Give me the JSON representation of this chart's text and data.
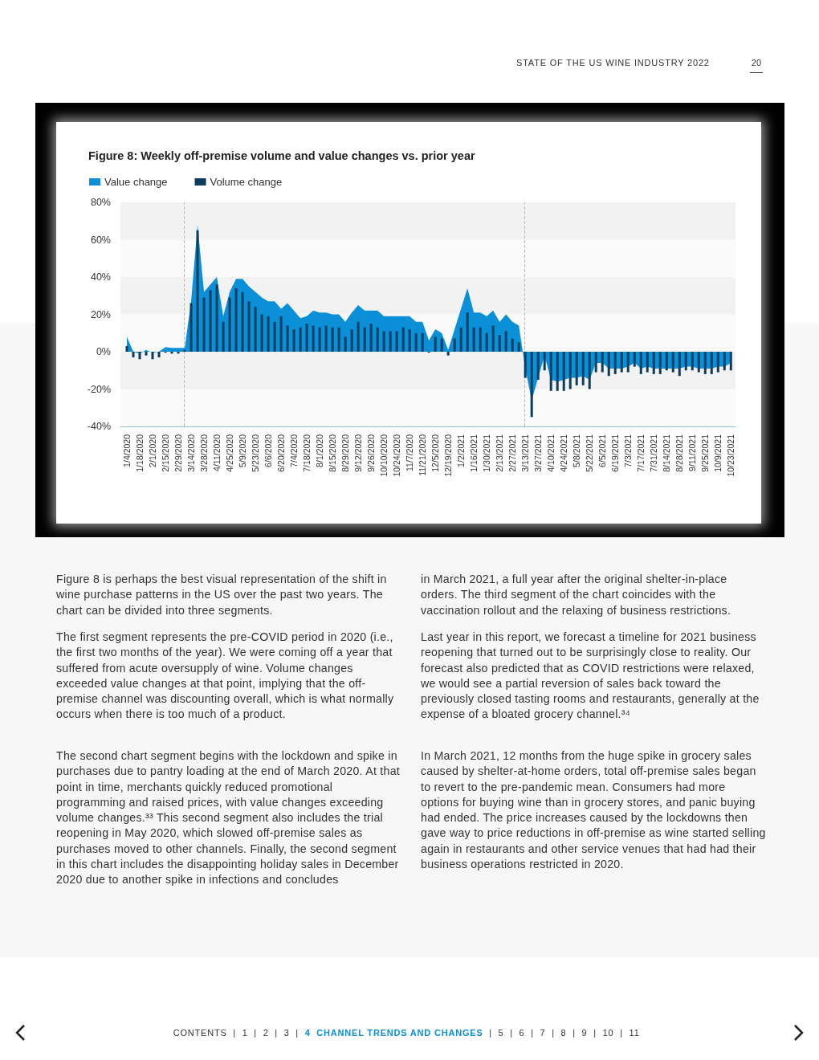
{
  "chart_data": {
    "type": "bar",
    "title": "Figure 8: Weekly off-premise volume and value changes vs. prior year",
    "x": [
      "2020-01-04",
      "2020-01-11",
      "2020-01-18",
      "2020-01-25",
      "2020-02-01",
      "2020-02-08",
      "2020-02-15",
      "2020-02-22",
      "2020-02-29",
      "2020-03-07",
      "2020-03-14",
      "2020-03-21",
      "2020-03-28",
      "2020-04-04",
      "2020-04-11",
      "2020-04-18",
      "2020-04-25",
      "2020-05-02",
      "2020-05-09",
      "2020-05-16",
      "2020-05-23",
      "2020-05-30",
      "2020-06-06",
      "2020-06-13",
      "2020-06-20",
      "2020-06-27",
      "2020-07-04",
      "2020-07-11",
      "2020-07-18",
      "2020-07-25",
      "2020-08-01",
      "2020-08-08",
      "2020-08-15",
      "2020-08-22",
      "2020-08-29",
      "2020-09-05",
      "2020-09-12",
      "2020-09-19",
      "2020-09-26",
      "2020-10-03",
      "2020-10-10",
      "2020-10-17",
      "2020-10-24",
      "2020-10-31",
      "2020-11-07",
      "2020-11-14",
      "2020-11-21",
      "2020-11-28",
      "2020-12-05",
      "2020-12-12",
      "2020-12-19",
      "2020-12-26",
      "2021-01-02",
      "2021-01-09",
      "2021-01-16",
      "2021-01-23",
      "2021-01-30",
      "2021-02-06",
      "2021-02-13",
      "2021-02-20",
      "2021-02-27",
      "2021-03-06",
      "2021-03-13",
      "2021-03-20",
      "2021-03-27",
      "2021-04-03",
      "2021-04-10",
      "2021-04-17",
      "2021-04-24",
      "2021-05-01",
      "2021-05-08",
      "2021-05-15",
      "2021-05-22",
      "2021-05-29",
      "2021-06-05",
      "2021-06-12",
      "2021-06-19",
      "2021-06-26",
      "2021-07-03",
      "2021-07-10",
      "2021-07-17",
      "2021-07-24",
      "2021-07-31",
      "2021-08-07",
      "2021-08-14",
      "2021-08-21",
      "2021-08-28",
      "2021-09-04",
      "2021-09-11",
      "2021-09-18",
      "2021-09-25",
      "2021-10-02",
      "2021-10-09",
      "2021-10-16",
      "2021-10-23"
    ],
    "series": [
      {
        "name": "Value change",
        "type": "area",
        "color": "#0b8fd6",
        "values": [
          8,
          0,
          -1,
          1,
          -0.5,
          0,
          2.5,
          2,
          2,
          2,
          27,
          68,
          32,
          36,
          40,
          19,
          32,
          39,
          39,
          35,
          32,
          29,
          27,
          27,
          23,
          26,
          22,
          18,
          19,
          22,
          21,
          21,
          20,
          20,
          16,
          21,
          25,
          22,
          22,
          22,
          19,
          19,
          19,
          19,
          19,
          16,
          16,
          6,
          12,
          10,
          1,
          12,
          23,
          34,
          21,
          21,
          19,
          22,
          16,
          20,
          16,
          14,
          -9,
          -26,
          -14,
          -2,
          -15,
          -16,
          -15,
          -14,
          -14,
          -13,
          -15,
          -6,
          -6,
          -9,
          -9,
          -9,
          -8,
          -6,
          -9,
          -8,
          -9,
          -9,
          -9,
          -9,
          -9,
          -8,
          -8,
          -9,
          -9,
          -9,
          -8,
          -8,
          -6
        ]
      },
      {
        "name": "Volume change",
        "color": "#0b3d5e",
        "values": [
          3,
          -3,
          -4,
          -2,
          -4,
          -3,
          -0.5,
          -1,
          -1,
          1,
          26,
          65,
          29,
          33,
          36,
          16,
          29,
          34,
          32,
          27,
          24,
          20,
          19,
          16,
          19,
          14,
          12,
          13,
          15,
          14,
          13,
          14,
          13,
          13,
          8,
          12,
          16,
          13,
          15,
          13,
          11,
          11,
          11,
          13,
          12,
          10,
          10,
          -0.5,
          8,
          7,
          -2,
          7,
          13,
          21,
          13,
          13,
          10,
          14,
          9,
          11,
          7,
          5,
          -14,
          -35,
          -15,
          -10,
          -21,
          -21,
          -21,
          -20,
          -18,
          -18,
          -20,
          -11,
          -11,
          -13,
          -12,
          -11,
          -11,
          -8,
          -12,
          -11,
          -12,
          -12,
          -10,
          -11,
          -13,
          -10,
          -10,
          -11,
          -12,
          -12,
          -11,
          -10,
          -10
        ]
      }
    ],
    "xlim": [
      "2019-12-28",
      "2021-10-28"
    ],
    "xticks": [
      {
        "value": "2020-01-04",
        "label": "1/4/2020"
      },
      {
        "value": "2020-01-18",
        "label": "1/18/2020"
      },
      {
        "value": "2020-02-01",
        "label": "2/1/2020"
      },
      {
        "value": "2020-02-15",
        "label": "2/15/2020"
      },
      {
        "value": "2020-02-29",
        "label": "2/29/2020"
      },
      {
        "value": "2020-03-14",
        "label": "3/14/2020"
      },
      {
        "value": "2020-03-28",
        "label": "3/28/2020"
      },
      {
        "value": "2020-04-11",
        "label": "4/11/2020"
      },
      {
        "value": "2020-04-25",
        "label": "4/25/2020"
      },
      {
        "value": "2020-05-09",
        "label": "5/9/2020"
      },
      {
        "value": "2020-05-23",
        "label": "5/23/2020"
      },
      {
        "value": "2020-06-06",
        "label": "6/6/2020"
      },
      {
        "value": "2020-06-20",
        "label": "6/20/2020"
      },
      {
        "value": "2020-07-04",
        "label": "7/4/2020"
      },
      {
        "value": "2020-07-18",
        "label": "7/18/2020"
      },
      {
        "value": "2020-08-01",
        "label": "8/1/2020"
      },
      {
        "value": "2020-08-15",
        "label": "8/15/2020"
      },
      {
        "value": "2020-08-29",
        "label": "8/29/2020"
      },
      {
        "value": "2020-09-12",
        "label": "9/12/2020"
      },
      {
        "value": "2020-09-26",
        "label": "9/26/2020"
      },
      {
        "value": "2020-10-10",
        "label": "10/10/2020"
      },
      {
        "value": "2020-10-24",
        "label": "10/24/2020"
      },
      {
        "value": "2020-11-07",
        "label": "11/7/2020"
      },
      {
        "value": "2020-11-21",
        "label": "11/21/2020"
      },
      {
        "value": "2020-12-05",
        "label": "12/5/2020"
      },
      {
        "value": "2020-12-19",
        "label": "12/19/2020"
      },
      {
        "value": "2021-01-02",
        "label": "1/2/2021"
      },
      {
        "value": "2021-01-16",
        "label": "1/16/2021"
      },
      {
        "value": "2021-01-30",
        "label": "1/30/2021"
      },
      {
        "value": "2021-02-13",
        "label": "2/13/2021"
      },
      {
        "value": "2021-02-27",
        "label": "2/27/2021"
      },
      {
        "value": "2021-03-13",
        "label": "3/13/2021"
      },
      {
        "value": "2021-03-27",
        "label": "3/27/2021"
      },
      {
        "value": "2021-04-10",
        "label": "4/10/2021"
      },
      {
        "value": "2021-04-24",
        "label": "4/24/2021"
      },
      {
        "value": "2021-05-08",
        "label": "5/8/2021"
      },
      {
        "value": "2021-05-22",
        "label": "5/22/2021"
      },
      {
        "value": "2021-06-05",
        "label": "6/5/2021"
      },
      {
        "value": "2021-06-19",
        "label": "6/19/2021"
      },
      {
        "value": "2021-07-03",
        "label": "7/3/2021"
      },
      {
        "value": "2021-07-17",
        "label": "7/17/2021"
      },
      {
        "value": "2021-07-31",
        "label": "7/31/2021"
      },
      {
        "value": "2021-08-14",
        "label": "8/14/2021"
      },
      {
        "value": "2021-08-28",
        "label": "8/28/2021"
      },
      {
        "value": "2021-09-11",
        "label": "9/11/2021"
      },
      {
        "value": "2021-09-25",
        "label": "9/25/2021"
      },
      {
        "value": "2021-10-09",
        "label": "10/9/2021"
      },
      {
        "value": "2021-10-23",
        "label": "10/23/2021"
      }
    ],
    "ylim": [
      -40,
      80
    ],
    "yticks": [
      {
        "value": -40,
        "label": "-40%"
      },
      {
        "value": -20,
        "label": "-20%"
      },
      {
        "value": 0,
        "label": "0%"
      },
      {
        "value": 20,
        "label": "20%"
      },
      {
        "value": 40,
        "label": "40%"
      },
      {
        "value": 60,
        "label": "60%"
      },
      {
        "value": 80,
        "label": "80%"
      }
    ],
    "bands": [
      {
        "axis": "y",
        "from": -20,
        "to": 0,
        "color": "#f2f2f2"
      },
      {
        "axis": "y",
        "from": 20,
        "to": 40,
        "color": "#f2f2f2"
      },
      {
        "axis": "y",
        "from": 60,
        "to": 80,
        "color": "#f2f2f2"
      }
    ],
    "legend": "top left",
    "ref_lines": [
      {
        "axis": "x",
        "value": "2020-03-06",
        "color": "#bbbbbb",
        "line_style": "dashed"
      },
      {
        "axis": "x",
        "value": "2021-03-12",
        "color": "#bbbbbb",
        "line_style": "dashed"
      }
    ],
    "annotations": [
      "STATE OF THE US WINE INDUSTRY 2022",
      "20",
      "Figure 8 is perhaps the best visual representation of the shift in wine purchase patterns in the US over the past two years. The chart can be divided into three segments.",
      "The first segment represents the pre-COVID period in 2020 (i.e., the first two months of the year). We were coming off a year that suffered from acute oversupply of wine. Volume changes exceeded value changes at that point, implying that the off-premise channel was discounting overall, which is what normally occurs when there is too much of a product.",
      "The second chart segment begins with the lockdown and spike in purchases due to pantry loading at the end of March 2020. At that point in time, merchants quickly reduced promotional programming and raised prices, with value changes exceeding volume changes.³³ This second segment also includes the trial reopening in May 2020, which slowed off-premise sales as purchases moved to other channels. Finally, the second segment in this chart includes the disappointing holiday sales in December 2020 due to another spike in infections and concludes",
      "in March 2021, a full year after the original shelter-in-place orders. The third segment of the chart coincides with the vaccination rollout and the relaxing of business restrictions.",
      "Last year in this report, we forecast a timeline for 2021 business reopening that turned out to be surprisingly close to reality. Our forecast also predicted that as COVID restrictions were relaxed, we would see a partial reversion of sales back toward the previously closed tasting rooms and restaurants, generally at the expense of a bloated grocery channel.³⁴",
      "In March 2021, 12 months from the huge spike in grocery sales caused by shelter-at-home orders, total off-premise sales began to revert to the pre-pandemic mean. Consumers had more options for buying wine than in grocery stores, and panic buying had ended. The price increases caused by the lockdowns then gave way to price reductions in off-premise as wine started selling again in restaurants and other service venues that had had their business operations restricted in 2020.",
      "CONTENTS  |  1  |  2  |  3  |",
      "4  CHANNEL TRENDS AND CHANGES",
      "|  5  |  6  |  7  |  8  |  9  |  10  |  11"
    ]
  }
}
